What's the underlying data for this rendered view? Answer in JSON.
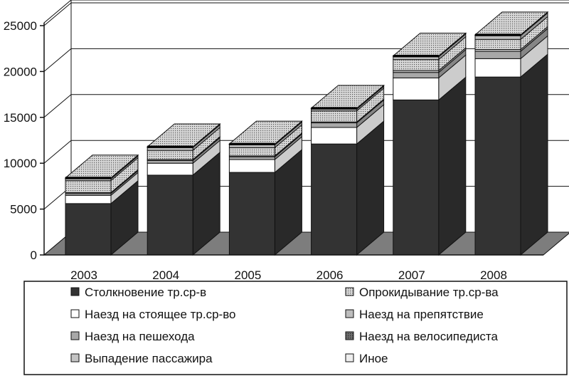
{
  "chart_data": {
    "type": "bar",
    "stacked": true,
    "three_d": true,
    "title": "",
    "xlabel": "",
    "ylabel": "",
    "ylim": [
      0,
      25000
    ],
    "yticks": [
      0,
      5000,
      10000,
      15000,
      20000,
      25000
    ],
    "grid": true,
    "legend_position": "bottom",
    "categories": [
      "2003",
      "2004",
      "2005",
      "2006",
      "2007",
      "2008"
    ],
    "series": [
      {
        "name": "Столкновение тр.ср-в",
        "color": "#333333",
        "values": [
          5600,
          8700,
          9000,
          12100,
          16900,
          19400
        ]
      },
      {
        "name": "Наезд на стоящее тр.ср-во",
        "color": "#ffffff",
        "values": [
          900,
          1300,
          1400,
          1800,
          2400,
          2000
        ]
      },
      {
        "name": "Наезд на пешехода",
        "color": "#a8a8a8",
        "values": [
          200,
          300,
          300,
          500,
          600,
          800
        ]
      },
      {
        "name": "Выпадение пассажира",
        "color": "#c4c4c4",
        "values": [
          100,
          100,
          100,
          100,
          200,
          200
        ]
      },
      {
        "name": "Опрокидывание тр.ср-ва",
        "color": "#dcdcdc",
        "values": [
          1300,
          1000,
          900,
          1200,
          1200,
          1100
        ]
      },
      {
        "name": "Наезд на препятствие",
        "color": "#bdbdbd",
        "values": [
          200,
          300,
          300,
          200,
          300,
          400
        ]
      },
      {
        "name": "Наезд на велосипедиста",
        "color": "#7a7a7a",
        "values": [
          100,
          100,
          100,
          100,
          100,
          100
        ]
      },
      {
        "name": "Иное",
        "color": "#eeeeee",
        "values": [
          0,
          0,
          0,
          0,
          0,
          0
        ]
      }
    ]
  }
}
